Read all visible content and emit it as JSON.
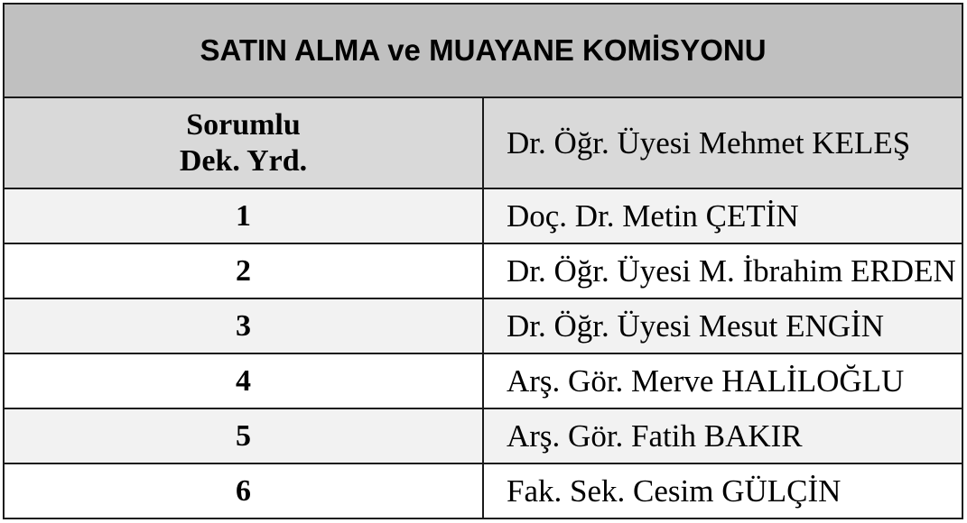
{
  "title": "SATIN ALMA ve MUAYANE KOMİSYONU",
  "header": {
    "label_line1": "Sorumlu",
    "label_line2": "Dek. Yrd.",
    "name": "Dr. Öğr. Üyesi Mehmet KELEŞ"
  },
  "members": [
    {
      "no": "1",
      "name": "Doç. Dr. Metin ÇETİN"
    },
    {
      "no": "2",
      "name": "Dr. Öğr. Üyesi M. İbrahim ERDEN"
    },
    {
      "no": "3",
      "name": "Dr. Öğr. Üyesi Mesut ENGİN"
    },
    {
      "no": "4",
      "name": "Arş. Gör. Merve HALİLOĞLU"
    },
    {
      "no": "5",
      "name": "Arş. Gör. Fatih BAKIR"
    },
    {
      "no": "6",
      "name": "Fak. Sek. Cesim GÜLÇİN"
    }
  ],
  "colors": {
    "title_bg": "#c0c0c0",
    "header_bg": "#d9d9d9",
    "odd_row_bg": "#f2f2f2",
    "even_row_bg": "#ffffff"
  }
}
